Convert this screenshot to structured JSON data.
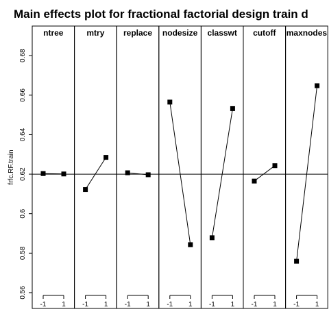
{
  "chart_data": {
    "type": "line",
    "title": "Main effects plot for fractional factorial design train d",
    "ylabel": "frfc.RF.train",
    "ylim": [
      0.552,
      0.695
    ],
    "yticks": [
      0.56,
      0.58,
      0.6,
      0.62,
      0.64,
      0.66,
      0.68
    ],
    "ytick_labels": [
      "0.56",
      "0.58",
      "0.6",
      "0.62",
      "0.64",
      "0.66",
      "0.68"
    ],
    "reference_line": 0.62,
    "x_levels": [
      "-1",
      "1"
    ],
    "panels": [
      {
        "name": "ntree",
        "values": [
          0.6203,
          0.6201
        ]
      },
      {
        "name": "mtry",
        "values": [
          0.6122,
          0.6285
        ]
      },
      {
        "name": "replace",
        "values": [
          0.6207,
          0.6197
        ]
      },
      {
        "name": "nodesize",
        "values": [
          0.6565,
          0.5843
        ]
      },
      {
        "name": "classwt",
        "values": [
          0.5878,
          0.6532
        ]
      },
      {
        "name": "cutoff",
        "values": [
          0.6165,
          0.6243
        ]
      },
      {
        "name": "maxnodes",
        "values": [
          0.5759,
          0.6648
        ]
      }
    ],
    "grid": false,
    "legend": "none"
  }
}
